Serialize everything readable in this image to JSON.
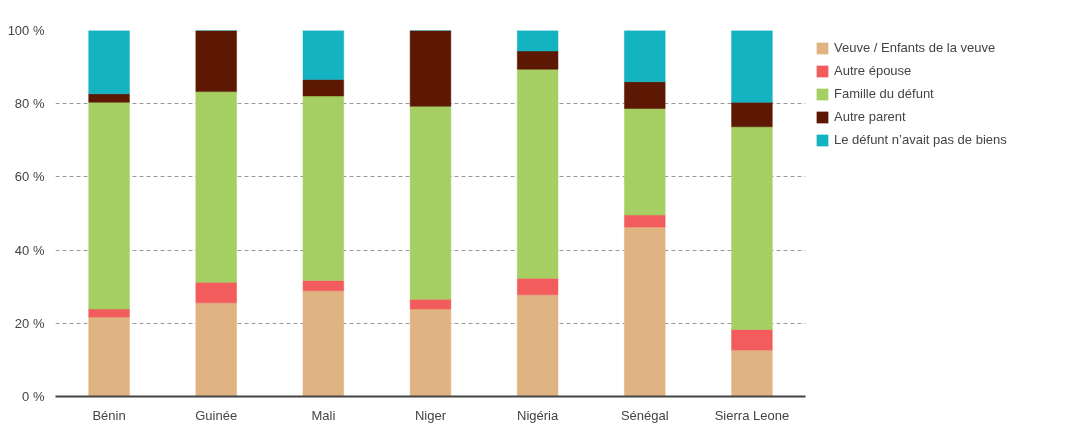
{
  "chart_data": {
    "type": "bar",
    "stacked": true,
    "categories": [
      "Bénin",
      "Guinée",
      "Mali",
      "Niger",
      "Nigéria",
      "Sénégal",
      "Sierra Leone"
    ],
    "series": [
      {
        "name": "Veuve / Enfants de la veuve",
        "color": "#e0b383",
        "values": [
          21.7,
          25.6,
          28.9,
          23.9,
          27.8,
          46.3,
          12.7
        ]
      },
      {
        "name": "Autre épouse",
        "color": "#f25c5c",
        "values": [
          2.2,
          5.6,
          2.8,
          2.7,
          4.5,
          3.3,
          5.6
        ]
      },
      {
        "name": "Famille du défunt",
        "color": "#a5cf62",
        "values": [
          56.5,
          52.1,
          50.4,
          52.7,
          57.1,
          29.1,
          55.4
        ]
      },
      {
        "name": "Autre parent",
        "color": "#5c1803",
        "values": [
          2.3,
          16.7,
          4.5,
          20.7,
          5.0,
          7.3,
          6.7
        ]
      },
      {
        "name": "Le défunt n’avait pas de biens",
        "color": "#13b3c1",
        "values": [
          17.3,
          0,
          13.4,
          0,
          5.6,
          14.0,
          19.6
        ]
      }
    ],
    "ylim": [
      0,
      100
    ],
    "yticks": [
      {
        "value": 0,
        "label": "0 %"
      },
      {
        "value": 20,
        "label": "20 %"
      },
      {
        "value": 40,
        "label": "40 %"
      },
      {
        "value": 60,
        "label": "60 %"
      },
      {
        "value": 80,
        "label": "80 %"
      },
      {
        "value": 100,
        "label": "100 %"
      }
    ],
    "grid": "y",
    "legend": "right"
  }
}
